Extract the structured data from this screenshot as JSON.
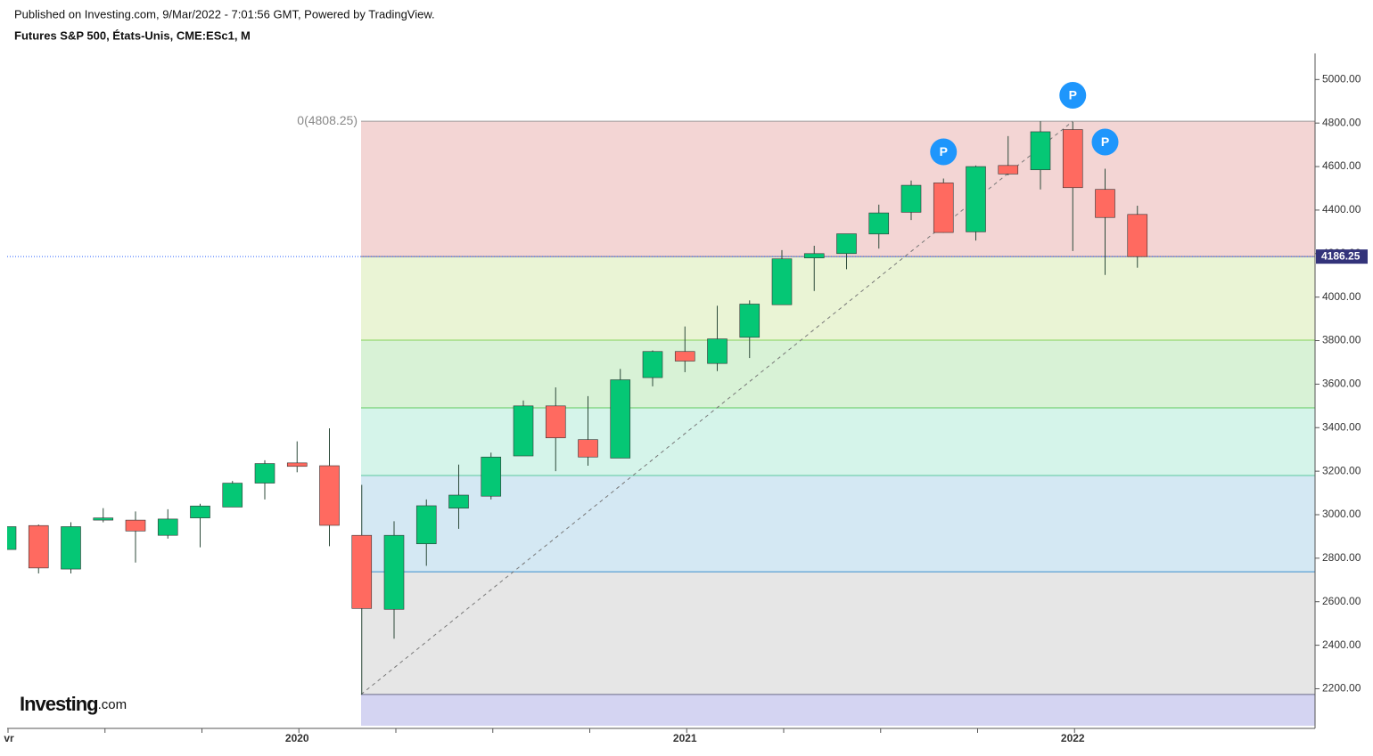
{
  "header": {
    "published": "Published on Investing.com, 9/Mar/2022 - 7:01:56 GMT, Powered by TradingView.",
    "symbol": "Futures S&P 500, États-Unis, CME:ESc1, M"
  },
  "logo": {
    "brand": "Investing",
    "suffix": ".com"
  },
  "chart_data": {
    "type": "candlestick",
    "categories": [
      "vr",
      null,
      null,
      null,
      null,
      null,
      null,
      null,
      null,
      "2020",
      null,
      null,
      null,
      null,
      null,
      null,
      null,
      null,
      null,
      null,
      null,
      "2021",
      null,
      null,
      null,
      null,
      null,
      null,
      null,
      null,
      null,
      null,
      null,
      "2022",
      null,
      null
    ],
    "open": [
      2840,
      2950,
      2750,
      2975,
      2975,
      2905,
      2985,
      3035,
      3145,
      3238,
      3225,
      2905,
      2565,
      2866,
      3030,
      3085,
      3270,
      3500,
      3345,
      3260,
      3630,
      3750,
      3695,
      3815,
      3965,
      4180,
      4200,
      4290,
      4390,
      4525,
      4300,
      4605,
      4585,
      4770,
      4495,
      4380
    ],
    "high": [
      2950,
      2955,
      2965,
      3030,
      3015,
      3025,
      3050,
      3155,
      3250,
      3337,
      3397,
      3137,
      2970,
      3070,
      3230,
      3285,
      3525,
      3585,
      3545,
      3670,
      3755,
      3865,
      3960,
      3985,
      4216,
      4236,
      4285,
      4425,
      4536,
      4545,
      4605,
      4740,
      4808.25,
      4805,
      4590,
      4420
    ],
    "low": [
      2840,
      2730,
      2730,
      2965,
      2780,
      2890,
      2850,
      3035,
      3070,
      3195,
      2855,
      2174,
      2430,
      2765,
      2935,
      3070,
      3270,
      3200,
      3225,
      3260,
      3590,
      3655,
      3660,
      3720,
      3965,
      4028,
      4128,
      4223,
      4354,
      4296,
      4260,
      4560,
      4495,
      4212,
      4102,
      4135
    ],
    "close": [
      2945,
      2755,
      2945,
      2985,
      2925,
      2980,
      3040,
      3145,
      3235,
      3222,
      2951,
      2569,
      2905,
      3041,
      3090,
      3265,
      3500,
      3353,
      3265,
      3620,
      3750,
      3706,
      3808,
      3968,
      4176,
      4200,
      4291,
      4387,
      4514,
      4297,
      4600,
      4566,
      4760,
      4503,
      4366,
      4186.25
    ],
    "up_color": "#05c775",
    "down_color": "#ff6a60",
    "ylim": [
      2030,
      5120
    ],
    "yticks": [
      {
        "value": 2200,
        "label": "2200.00"
      },
      {
        "value": 2400,
        "label": "2400.00"
      },
      {
        "value": 2600,
        "label": "2600.00"
      },
      {
        "value": 2800,
        "label": "2800.00"
      },
      {
        "value": 3000,
        "label": "3000.00"
      },
      {
        "value": 3200,
        "label": "3200.00"
      },
      {
        "value": 3400,
        "label": "3400.00"
      },
      {
        "value": 3600,
        "label": "3600.00"
      },
      {
        "value": 3800,
        "label": "3800.00"
      },
      {
        "value": 4000,
        "label": "4000.00"
      },
      {
        "value": 4200,
        "label": "4200.00"
      },
      {
        "value": 4400,
        "label": "4400.00"
      },
      {
        "value": 4600,
        "label": "4600.00"
      },
      {
        "value": 4800,
        "label": "4800.00"
      },
      {
        "value": 5000,
        "label": "5000.00"
      }
    ],
    "last_price": {
      "value": 4186.25,
      "label": "4186.25"
    },
    "fib_label": "0(4808.25)",
    "fib_levels": [
      {
        "price": 4808.25,
        "line": "#9a9a9a",
        "zone": "#f3d5d4"
      },
      {
        "price": 4186.5,
        "line": "#7a6a8a",
        "zone": "#eaf4d5"
      },
      {
        "price": 3801.9,
        "line": "#86d35a",
        "zone": "#d8f2d6"
      },
      {
        "price": 3491.1,
        "line": "#5ec95e",
        "zone": "#d5f4ea"
      },
      {
        "price": 3180.3,
        "line": "#5cc9a0",
        "zone": "#d4e8f3"
      },
      {
        "price": 2737.7,
        "line": "#3a8fce",
        "zone": "#e6e6e6"
      },
      {
        "price": 2174,
        "line": "#6a6a8a",
        "zone": "#d4d4f2"
      }
    ],
    "pivot_label": "P",
    "pivots": [
      29,
      33,
      34
    ]
  }
}
